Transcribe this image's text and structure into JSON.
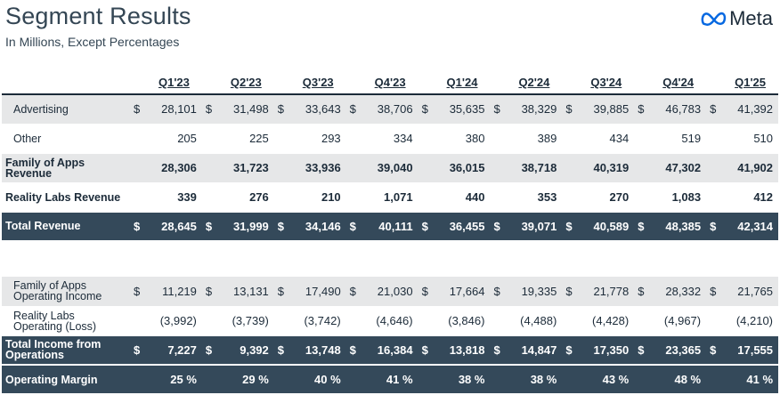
{
  "header": {
    "title": "Segment Results",
    "subtitle": "In Millions, Except Percentages",
    "logo_text": "Meta"
  },
  "quarters": [
    "Q1'23",
    "Q2'23",
    "Q3'23",
    "Q4'23",
    "Q1'24",
    "Q2'24",
    "Q3'24",
    "Q4'24",
    "Q1'25"
  ],
  "rows": {
    "advertising": {
      "label": "Advertising",
      "values": [
        "28,101",
        "31,498",
        "33,643",
        "38,706",
        "35,635",
        "38,329",
        "39,885",
        "46,783",
        "41,392"
      ]
    },
    "other": {
      "label": "Other",
      "values": [
        "205",
        "225",
        "293",
        "334",
        "380",
        "389",
        "434",
        "519",
        "510"
      ]
    },
    "foa_revenue": {
      "label_line1": "Family of Apps",
      "label_line2": "Revenue",
      "values": [
        "28,306",
        "31,723",
        "33,936",
        "39,040",
        "36,015",
        "38,718",
        "40,319",
        "47,302",
        "41,902"
      ]
    },
    "rl_revenue": {
      "label": "Reality Labs Revenue",
      "values": [
        "339",
        "276",
        "210",
        "1,071",
        "440",
        "353",
        "270",
        "1,083",
        "412"
      ]
    },
    "total_revenue": {
      "label": "Total Revenue",
      "values": [
        "28,645",
        "31,999",
        "34,146",
        "40,111",
        "36,455",
        "39,071",
        "40,589",
        "48,385",
        "42,314"
      ]
    },
    "foa_income": {
      "label_line1": "Family of Apps",
      "label_line2": "Operating Income",
      "values": [
        "11,219",
        "13,131",
        "17,490",
        "21,030",
        "17,664",
        "19,335",
        "21,778",
        "28,332",
        "21,765"
      ]
    },
    "rl_income": {
      "label_line1": "Reality Labs",
      "label_line2": "Operating (Loss)",
      "values": [
        "(3,992)",
        "(3,739)",
        "(3,742)",
        "(4,646)",
        "(3,846)",
        "(4,488)",
        "(4,428)",
        "(4,967)",
        "(4,210)"
      ]
    },
    "total_income": {
      "label_line1": "Total Income from",
      "label_line2": "Operations",
      "values": [
        "7,227",
        "9,392",
        "13,748",
        "16,384",
        "13,818",
        "14,847",
        "17,350",
        "23,365",
        "17,555"
      ]
    },
    "operating_margin": {
      "label": "Operating Margin",
      "values": [
        "25 %",
        "29 %",
        "40 %",
        "41 %",
        "38 %",
        "38 %",
        "43 %",
        "48 %",
        "41 %"
      ]
    }
  },
  "currency_symbol": "$",
  "colors": {
    "dark_row": "#34495a",
    "grey_row": "#e6e7e8",
    "text": "#1c2b39",
    "logo": "#0668e1"
  }
}
